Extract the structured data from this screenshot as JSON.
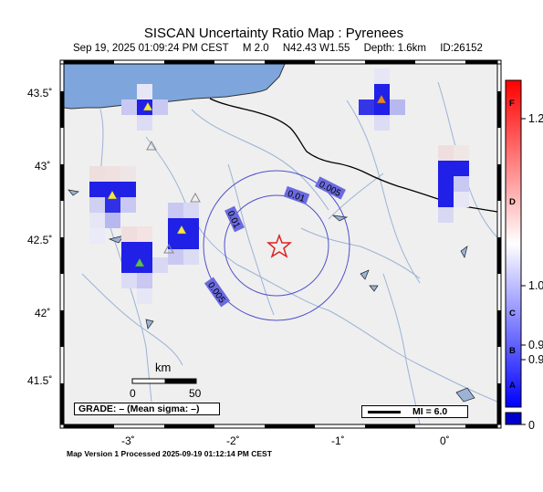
{
  "header": {
    "title": "SISCAN Uncertainty Ratio Map : Pyrenees",
    "date": "Sep 19, 2025 01:09:24 PM CEST",
    "magnitude": "M 2.0",
    "location": "N42.43 W1.55",
    "depth": "Depth: 1.6km",
    "event_id": "ID:26152"
  },
  "axes": {
    "lat_labels": [
      "43.5˚",
      "43˚",
      "42.5˚",
      "42˚",
      "41.5˚"
    ],
    "lon_labels": [
      "-3˚",
      "-2˚",
      "-1˚",
      "0˚"
    ]
  },
  "contours": {
    "labels": [
      "0.01",
      "0.005",
      "0.01",
      "0.005"
    ]
  },
  "scale_bar": {
    "unit": "km",
    "start": "0",
    "end": "50"
  },
  "grade_box": {
    "text": "GRADE: – (Mean sigma: –)"
  },
  "mi_legend": {
    "text": "MI = 6.0"
  },
  "colorbar": {
    "tick_labels": [
      "1.2",
      "1.0",
      "0.9",
      "0.9",
      "0"
    ],
    "grade_letters": [
      "F",
      "D",
      "C",
      "B",
      "A"
    ],
    "top_color": "#ff0000",
    "mid_color": "#ffffff",
    "bottom_color": "#0000ff"
  },
  "footer": {
    "text": "Map Version 1 Processed 2025-09-19 01:12:14 PM CEST"
  },
  "colors": {
    "sea": "#7ea6dd",
    "land": "#eeeeee",
    "border": "#000000",
    "river": "#9ab3d6",
    "contour": "#4848d0",
    "contour_label_bg": "#6a6ae0",
    "epicenter": "#dd2222"
  }
}
